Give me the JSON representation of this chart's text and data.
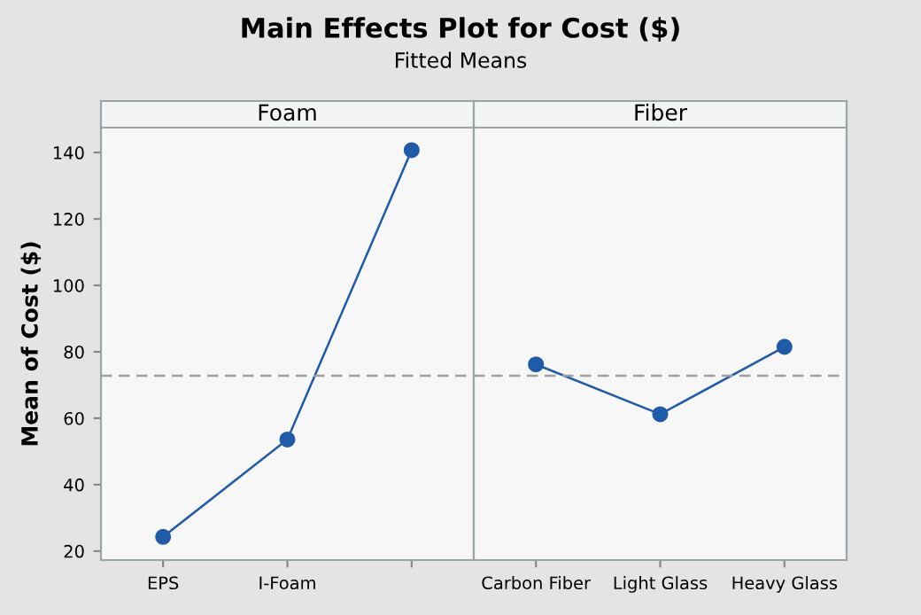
{
  "chart_data": [
    {
      "type": "line",
      "title": "Foam",
      "annotations": [
        "Main Effects Plot for Cost ($)",
        "Fitted Means"
      ],
      "ylabel": "Mean of Cost ($)",
      "categories": [
        "EPS",
        "I-Foam",
        null
      ],
      "values": [
        24.3,
        53.6,
        140.7
      ],
      "color": "#1f5ba8",
      "marker": "circle",
      "line_style": "solid",
      "ylim": [
        17.3,
        147.5
      ],
      "yticks": [
        20,
        40,
        60,
        80,
        100,
        120,
        140
      ],
      "ref_lines": [
        {
          "axis": "y",
          "value": 72.8,
          "color": "#a0a0a0",
          "line_style": "dashed"
        }
      ],
      "grid": false,
      "legend": false
    },
    {
      "type": "line",
      "title": "Fiber",
      "categories": [
        "Carbon Fiber",
        "Light Glass",
        "Heavy Glass"
      ],
      "values": [
        76.2,
        61.2,
        81.5
      ],
      "color": "#1f5ba8",
      "marker": "circle",
      "line_style": "solid",
      "ylim": [
        17.3,
        147.5
      ],
      "yticks": [
        20,
        40,
        60,
        80,
        100,
        120,
        140
      ],
      "tick_labels": "x",
      "ref_lines": [
        {
          "axis": "y",
          "value": 72.8,
          "color": "#a0a0a0",
          "line_style": "dashed"
        }
      ],
      "grid": false,
      "legend": false
    }
  ]
}
